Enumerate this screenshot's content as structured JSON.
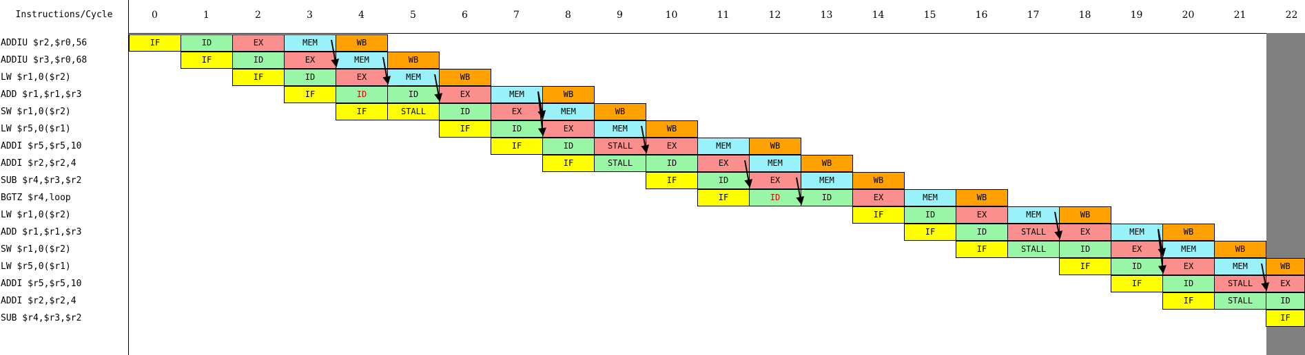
{
  "header": {
    "title": "Instructions/Cycle",
    "cycles": [
      "0",
      "1",
      "2",
      "3",
      "4",
      "5",
      "6",
      "7",
      "8",
      "9",
      "10",
      "11",
      "12",
      "13",
      "14",
      "15",
      "16",
      "17",
      "18",
      "19",
      "20",
      "21",
      "22"
    ]
  },
  "colors": {
    "IF": "#ffff00",
    "ID": "#99f6a6",
    "EX": "#fa8f8e",
    "MEM": "#99f2fa",
    "WB": "#ffa100",
    "STALL_IF": "#ffff00",
    "STALL_ID": "#99f6a6",
    "highlight_text": "#e00000",
    "current_cycle": "#808080"
  },
  "instructions": [
    {
      "label": "ADDIU $r2,$r0,56",
      "stages": [
        [
          "IF",
          0
        ],
        [
          "ID",
          1
        ],
        [
          "EX",
          2
        ],
        [
          "MEM",
          3
        ],
        [
          "WB",
          4
        ]
      ]
    },
    {
      "label": "ADDIU $r3,$r0,68",
      "stages": [
        [
          "IF",
          1
        ],
        [
          "ID",
          2
        ],
        [
          "EX",
          3
        ],
        [
          "MEM",
          4
        ],
        [
          "WB",
          5
        ]
      ]
    },
    {
      "label": "LW $r1,0($r2)",
      "stages": [
        [
          "IF",
          2
        ],
        [
          "ID",
          3
        ],
        [
          "EX",
          4
        ],
        [
          "MEM",
          5
        ],
        [
          "WB",
          6
        ]
      ]
    },
    {
      "label": "ADD $r1,$r1,$r3",
      "stages": [
        [
          "IF",
          3
        ],
        [
          "ID",
          4,
          "red"
        ],
        [
          "ID",
          5
        ],
        [
          "EX",
          6
        ],
        [
          "MEM",
          7
        ],
        [
          "WB",
          8
        ]
      ]
    },
    {
      "label": "SW $r1,0($r2)",
      "stages": [
        [
          "IF",
          4
        ],
        [
          "STALL",
          5,
          "IF"
        ],
        [
          "ID",
          6
        ],
        [
          "EX",
          7
        ],
        [
          "MEM",
          8
        ],
        [
          "WB",
          9
        ]
      ]
    },
    {
      "label": "LW $r5,0($r1)",
      "stages": [
        [
          "IF",
          6
        ],
        [
          "ID",
          7
        ],
        [
          "EX",
          8
        ],
        [
          "MEM",
          9
        ],
        [
          "WB",
          10
        ]
      ]
    },
    {
      "label": "ADDI $r5,$r5,10",
      "stages": [
        [
          "IF",
          7
        ],
        [
          "ID",
          8
        ],
        [
          "STALL",
          9,
          "EX"
        ],
        [
          "EX",
          10
        ],
        [
          "MEM",
          11
        ],
        [
          "WB",
          12
        ]
      ]
    },
    {
      "label": "ADDI $r2,$r2,4",
      "stages": [
        [
          "IF",
          8
        ],
        [
          "STALL",
          9,
          "ID"
        ],
        [
          "ID",
          10
        ],
        [
          "EX",
          11
        ],
        [
          "MEM",
          12
        ],
        [
          "WB",
          13
        ]
      ]
    },
    {
      "label": "SUB $r4,$r3,$r2",
      "stages": [
        [
          "IF",
          10
        ],
        [
          "ID",
          11
        ],
        [
          "EX",
          12
        ],
        [
          "MEM",
          13
        ],
        [
          "WB",
          14
        ]
      ]
    },
    {
      "label": "BGTZ $r4,loop",
      "stages": [
        [
          "IF",
          11
        ],
        [
          "ID",
          12,
          "red"
        ],
        [
          "ID",
          13
        ],
        [
          "EX",
          14
        ],
        [
          "MEM",
          15
        ],
        [
          "WB",
          16
        ]
      ]
    },
    {
      "label": "LW $r1,0($r2)",
      "stages": [
        [
          "IF",
          14
        ],
        [
          "ID",
          15
        ],
        [
          "EX",
          16
        ],
        [
          "MEM",
          17
        ],
        [
          "WB",
          18
        ]
      ]
    },
    {
      "label": "ADD $r1,$r1,$r3",
      "stages": [
        [
          "IF",
          15
        ],
        [
          "ID",
          16
        ],
        [
          "STALL",
          17,
          "EX"
        ],
        [
          "EX",
          18
        ],
        [
          "MEM",
          19
        ],
        [
          "WB",
          20
        ]
      ]
    },
    {
      "label": "SW $r1,0($r2)",
      "stages": [
        [
          "IF",
          16
        ],
        [
          "STALL",
          17,
          "ID"
        ],
        [
          "ID",
          18
        ],
        [
          "EX",
          19
        ],
        [
          "MEM",
          20
        ],
        [
          "WB",
          21
        ]
      ]
    },
    {
      "label": "LW $r5,0($r1)",
      "stages": [
        [
          "IF",
          18
        ],
        [
          "ID",
          19
        ],
        [
          "EX",
          20
        ],
        [
          "MEM",
          21
        ],
        [
          "WB",
          22
        ]
      ]
    },
    {
      "label": "ADDI $r5,$r5,10",
      "stages": [
        [
          "IF",
          19
        ],
        [
          "ID",
          20
        ],
        [
          "STALL",
          21,
          "EX"
        ],
        [
          "EX",
          22
        ]
      ]
    },
    {
      "label": "ADDI $r2,$r2,4",
      "stages": [
        [
          "IF",
          20
        ],
        [
          "STALL",
          21,
          "ID"
        ],
        [
          "ID",
          22
        ]
      ]
    },
    {
      "label": "SUB $r4,$r3,$r2",
      "stages": [
        [
          "IF",
          22
        ]
      ]
    }
  ],
  "forwarding_arrows": [
    {
      "from_row": 0,
      "from_cycle": 4,
      "to_row": 1,
      "to_cycle": 4
    },
    {
      "from_row": 1,
      "from_cycle": 5,
      "to_row": 2,
      "to_cycle": 5
    },
    {
      "from_row": 2,
      "from_cycle": 6,
      "to_row": 3,
      "to_cycle": 6
    },
    {
      "from_row": 3,
      "from_cycle": 8,
      "to_row": 4,
      "to_cycle": 8
    },
    {
      "from_row": 3,
      "from_cycle": 8,
      "to_row": 5,
      "to_cycle": 8
    },
    {
      "from_row": 5,
      "from_cycle": 10,
      "to_row": 6,
      "to_cycle": 10
    },
    {
      "from_row": 7,
      "from_cycle": 12,
      "to_row": 8,
      "to_cycle": 12
    },
    {
      "from_row": 8,
      "from_cycle": 13,
      "to_row": 9,
      "to_cycle": 13
    },
    {
      "from_row": 10,
      "from_cycle": 18,
      "to_row": 11,
      "to_cycle": 18
    },
    {
      "from_row": 11,
      "from_cycle": 20,
      "to_row": 12,
      "to_cycle": 20
    },
    {
      "from_row": 11,
      "from_cycle": 20,
      "to_row": 13,
      "to_cycle": 20
    },
    {
      "from_row": 13,
      "from_cycle": 22,
      "to_row": 14,
      "to_cycle": 22
    }
  ]
}
